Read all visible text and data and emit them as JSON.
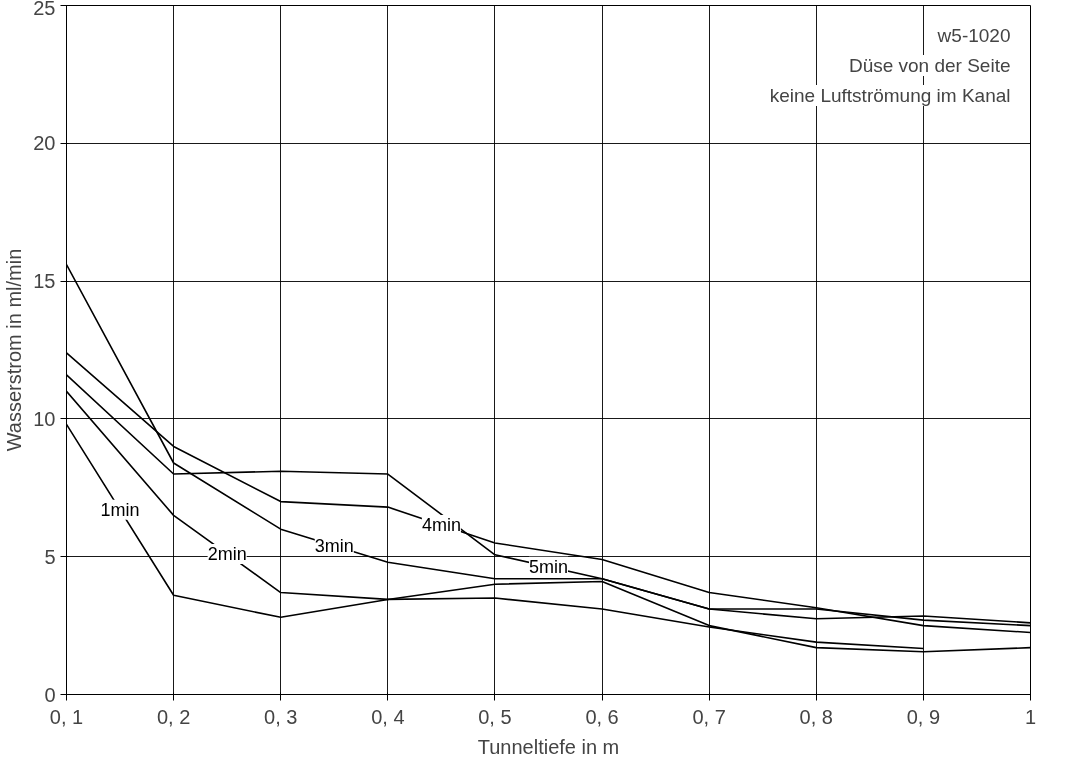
{
  "chart_data": {
    "type": "line",
    "xlabel": "Tunneltiefe in m",
    "ylabel": "Wasserstrom in ml/min",
    "categories": [
      "0, 1",
      "0, 2",
      "0, 3",
      "0, 4",
      "0, 5",
      "0, 6",
      "0, 7",
      "0, 8",
      "0, 9",
      "1"
    ],
    "series": [
      {
        "name": "1min",
        "color": "#000000",
        "values": [
          9.8,
          3.6,
          2.8,
          3.45,
          4.0,
          4.1,
          2.5,
          1.7,
          1.55,
          1.7
        ]
      },
      {
        "name": "2min",
        "color": "#000000",
        "values": [
          11.0,
          6.5,
          3.7,
          3.45,
          3.5,
          3.1,
          2.45,
          1.9,
          1.67,
          null
        ]
      },
      {
        "name": "3min",
        "color": "#000000",
        "values": [
          15.6,
          8.4,
          6.0,
          4.8,
          4.2,
          4.2,
          3.1,
          2.75,
          2.85,
          2.6
        ]
      },
      {
        "name": "4min",
        "color": "#000000",
        "values": [
          12.4,
          9.0,
          7.0,
          6.8,
          5.5,
          4.9,
          3.7,
          3.15,
          2.5,
          2.25
        ]
      },
      {
        "name": "5min",
        "color": "#000000",
        "values": [
          11.6,
          8.0,
          8.1,
          8.0,
          5.07,
          4.2,
          3.1,
          3.1,
          2.7,
          2.5
        ]
      }
    ],
    "annotations": [
      "w5-1020",
      "Düse von der Seite",
      "keine Luftströmung im Kanal"
    ],
    "ylim": [
      0,
      25
    ],
    "yticks": [
      0,
      5,
      10,
      15,
      20,
      25
    ],
    "grid": true,
    "legend": false,
    "marker": "none",
    "line_style": "solid"
  }
}
